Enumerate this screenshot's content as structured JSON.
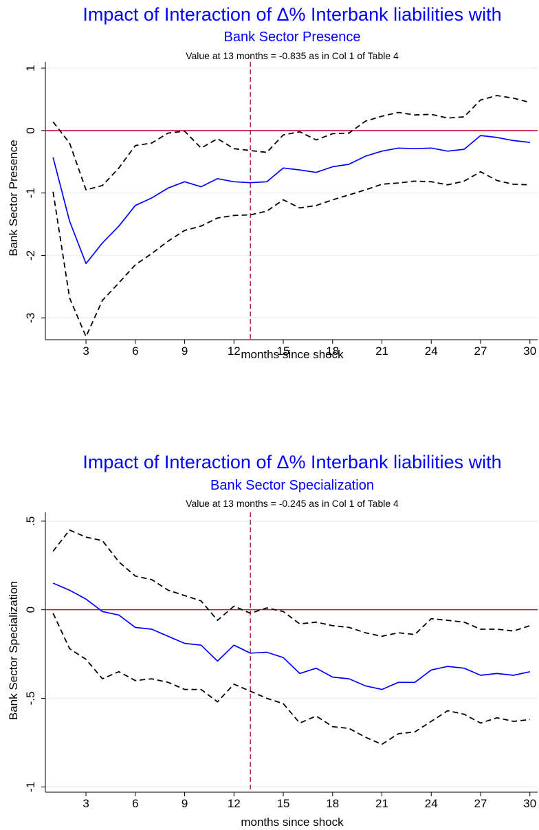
{
  "chart_data": [
    {
      "type": "line",
      "title": "Impact of Interaction of Δ% Interbank liabilities with",
      "subtitle": "Bank Sector Presence",
      "note": "Value at 13 months = -0.835 as in Col 1 of Table 4",
      "xlabel": "months since shock",
      "ylabel": "Bank Sector Presence",
      "xlim": [
        1,
        30
      ],
      "ylim": [
        -3.35,
        1.1
      ],
      "xticks": [
        3,
        6,
        9,
        12,
        15,
        18,
        21,
        24,
        27,
        30
      ],
      "xtick_labels": [
        "3",
        "6",
        "9",
        "12",
        "15",
        "18",
        "21",
        "24",
        "27",
        "30"
      ],
      "yticks": [
        1,
        0,
        -1,
        -2,
        -3
      ],
      "ytick_labels": [
        "1",
        "0",
        "-1",
        "-2",
        "-3"
      ],
      "reference_x": 13,
      "reference_y": 0,
      "grid": true,
      "colors": {
        "estimate": "#0000ff",
        "band": "#000000",
        "refline": "#c0143c",
        "zero": "#c0143c",
        "title": "#0000ff"
      },
      "x": [
        1,
        2,
        3,
        4,
        5,
        6,
        7,
        8,
        9,
        10,
        11,
        12,
        13,
        14,
        15,
        16,
        17,
        18,
        19,
        20,
        21,
        22,
        23,
        24,
        25,
        26,
        27,
        28,
        29,
        30
      ],
      "series": [
        {
          "role": "estimate",
          "values": [
            -0.43,
            -1.45,
            -2.13,
            -1.8,
            -1.53,
            -1.2,
            -1.08,
            -0.92,
            -0.82,
            -0.9,
            -0.77,
            -0.82,
            -0.835,
            -0.82,
            -0.6,
            -0.63,
            -0.67,
            -0.58,
            -0.54,
            -0.41,
            -0.33,
            -0.28,
            -0.29,
            -0.28,
            -0.33,
            -0.3,
            -0.08,
            -0.11,
            -0.16,
            -0.19
          ]
        },
        {
          "role": "upper",
          "values": [
            0.14,
            -0.2,
            -0.95,
            -0.88,
            -0.6,
            -0.24,
            -0.2,
            -0.04,
            -0.01,
            -0.28,
            -0.13,
            -0.29,
            -0.32,
            -0.35,
            -0.07,
            -0.02,
            -0.15,
            -0.05,
            -0.04,
            0.15,
            0.23,
            0.29,
            0.25,
            0.26,
            0.2,
            0.22,
            0.49,
            0.56,
            0.52,
            0.45
          ]
        },
        {
          "role": "lower",
          "values": [
            -0.98,
            -2.68,
            -3.3,
            -2.72,
            -2.44,
            -2.15,
            -1.97,
            -1.77,
            -1.6,
            -1.53,
            -1.4,
            -1.36,
            -1.35,
            -1.29,
            -1.11,
            -1.24,
            -1.2,
            -1.11,
            -1.03,
            -0.95,
            -0.86,
            -0.84,
            -0.81,
            -0.82,
            -0.87,
            -0.81,
            -0.66,
            -0.8,
            -0.86,
            -0.87
          ]
        }
      ]
    },
    {
      "type": "line",
      "title": "Impact of Interaction of Δ% Interbank liabilities with",
      "subtitle": "Bank Sector Specialization",
      "note": "Value at 13 months = -0.245 as in Col 1 of Table 4",
      "xlabel": "months since shock",
      "ylabel": "Bank Sector Specialization",
      "xlim": [
        1,
        30
      ],
      "ylim": [
        -1.03,
        0.55
      ],
      "xticks": [
        3,
        6,
        9,
        12,
        15,
        18,
        21,
        24,
        27,
        30
      ],
      "xtick_labels": [
        "3",
        "6",
        "9",
        "12",
        "15",
        "18",
        "21",
        "24",
        "27",
        "30"
      ],
      "yticks": [
        0.5,
        0,
        -0.5,
        -1
      ],
      "ytick_labels": [
        ".5",
        "0",
        "-.5",
        "-1"
      ],
      "reference_x": 13,
      "reference_y": 0,
      "grid": true,
      "colors": {
        "estimate": "#0000ff",
        "band": "#000000",
        "refline": "#c0143c",
        "zero": "#c0143c",
        "title": "#0000ff"
      },
      "x": [
        1,
        2,
        3,
        4,
        5,
        6,
        7,
        8,
        9,
        10,
        11,
        12,
        13,
        14,
        15,
        16,
        17,
        18,
        19,
        20,
        21,
        22,
        23,
        24,
        25,
        26,
        27,
        28,
        29,
        30
      ],
      "series": [
        {
          "role": "estimate",
          "values": [
            0.15,
            0.11,
            0.06,
            -0.01,
            -0.03,
            -0.1,
            -0.11,
            -0.15,
            -0.19,
            -0.2,
            -0.29,
            -0.2,
            -0.245,
            -0.24,
            -0.27,
            -0.36,
            -0.33,
            -0.38,
            -0.39,
            -0.43,
            -0.45,
            -0.41,
            -0.41,
            -0.34,
            -0.32,
            -0.33,
            -0.37,
            -0.36,
            -0.37,
            -0.35
          ]
        },
        {
          "role": "upper",
          "values": [
            0.33,
            0.45,
            0.41,
            0.39,
            0.27,
            0.19,
            0.17,
            0.11,
            0.08,
            0.05,
            -0.06,
            0.02,
            -0.02,
            0.01,
            -0.01,
            -0.08,
            -0.07,
            -0.09,
            -0.1,
            -0.13,
            -0.15,
            -0.13,
            -0.14,
            -0.05,
            -0.06,
            -0.07,
            -0.11,
            -0.11,
            -0.12,
            -0.09
          ]
        },
        {
          "role": "lower",
          "values": [
            -0.02,
            -0.22,
            -0.28,
            -0.39,
            -0.35,
            -0.4,
            -0.39,
            -0.41,
            -0.45,
            -0.45,
            -0.52,
            -0.42,
            -0.46,
            -0.5,
            -0.53,
            -0.64,
            -0.6,
            -0.66,
            -0.67,
            -0.72,
            -0.76,
            -0.7,
            -0.69,
            -0.63,
            -0.57,
            -0.59,
            -0.64,
            -0.61,
            -0.63,
            -0.62
          ]
        }
      ]
    }
  ]
}
